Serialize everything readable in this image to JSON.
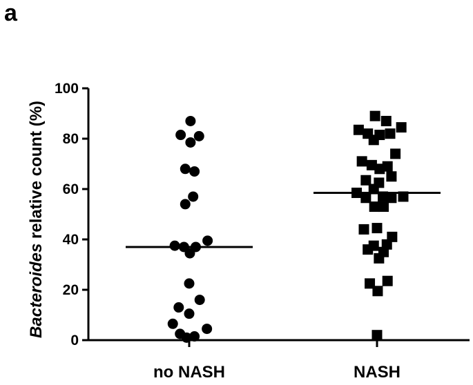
{
  "panel_label": "a",
  "chart_data": {
    "type": "scatter",
    "title": "",
    "ylabel_italic": "Bacteroides",
    "ylabel_rest": " relative count (%)",
    "categories": [
      "no NASH",
      "NASH"
    ],
    "ylim": [
      0,
      100
    ],
    "yticks": [
      0,
      20,
      40,
      60,
      80,
      100
    ],
    "grid": false,
    "legend": "none",
    "series": [
      {
        "category": "no NASH",
        "marker": "circle",
        "median": 37,
        "points": [
          {
            "x": 0.02,
            "y": 87
          },
          {
            "x": -0.13,
            "y": 81.5
          },
          {
            "x": 0.15,
            "y": 81
          },
          {
            "x": 0.02,
            "y": 78.5
          },
          {
            "x": -0.06,
            "y": 68
          },
          {
            "x": 0.08,
            "y": 67
          },
          {
            "x": 0.06,
            "y": 57
          },
          {
            "x": -0.06,
            "y": 54
          },
          {
            "x": -0.22,
            "y": 37.5
          },
          {
            "x": -0.08,
            "y": 37
          },
          {
            "x": 0.1,
            "y": 37
          },
          {
            "x": 0.28,
            "y": 39.5
          },
          {
            "x": 0.01,
            "y": 34.5
          },
          {
            "x": 0.0,
            "y": 22.5
          },
          {
            "x": 0.16,
            "y": 16
          },
          {
            "x": -0.16,
            "y": 13
          },
          {
            "x": 0.0,
            "y": 10.5
          },
          {
            "x": -0.25,
            "y": 6.5
          },
          {
            "x": 0.27,
            "y": 4.5
          },
          {
            "x": -0.14,
            "y": 2.5
          },
          {
            "x": -0.04,
            "y": 1
          },
          {
            "x": 0.08,
            "y": 1.5
          }
        ]
      },
      {
        "category": "NASH",
        "marker": "square",
        "median": 58.5,
        "points": [
          {
            "x": -0.03,
            "y": 89
          },
          {
            "x": 0.14,
            "y": 87
          },
          {
            "x": -0.28,
            "y": 83.5
          },
          {
            "x": -0.14,
            "y": 82
          },
          {
            "x": 0.04,
            "y": 81.5
          },
          {
            "x": 0.2,
            "y": 82
          },
          {
            "x": 0.37,
            "y": 84.5
          },
          {
            "x": -0.05,
            "y": 79.5
          },
          {
            "x": 0.28,
            "y": 74
          },
          {
            "x": -0.23,
            "y": 71
          },
          {
            "x": -0.08,
            "y": 69.5
          },
          {
            "x": 0.04,
            "y": 68
          },
          {
            "x": 0.16,
            "y": 69
          },
          {
            "x": 0.22,
            "y": 65
          },
          {
            "x": -0.17,
            "y": 63.5
          },
          {
            "x": 0.03,
            "y": 62.5
          },
          {
            "x": -0.05,
            "y": 60
          },
          {
            "x": -0.31,
            "y": 58.5
          },
          {
            "x": -0.17,
            "y": 56.5
          },
          {
            "x": 0.09,
            "y": 57
          },
          {
            "x": 0.22,
            "y": 56.5
          },
          {
            "x": 0.4,
            "y": 57
          },
          {
            "x": -0.04,
            "y": 53
          },
          {
            "x": 0.1,
            "y": 53
          },
          {
            "x": -0.2,
            "y": 44
          },
          {
            "x": 0.0,
            "y": 44.5
          },
          {
            "x": -0.05,
            "y": 37.5
          },
          {
            "x": 0.15,
            "y": 38
          },
          {
            "x": 0.23,
            "y": 41
          },
          {
            "x": -0.14,
            "y": 36
          },
          {
            "x": 0.1,
            "y": 35
          },
          {
            "x": 0.03,
            "y": 32.5
          },
          {
            "x": -0.11,
            "y": 22.5
          },
          {
            "x": 0.16,
            "y": 23.5
          },
          {
            "x": 0.01,
            "y": 19.5
          },
          {
            "x": 0.0,
            "y": 2
          }
        ]
      }
    ]
  }
}
